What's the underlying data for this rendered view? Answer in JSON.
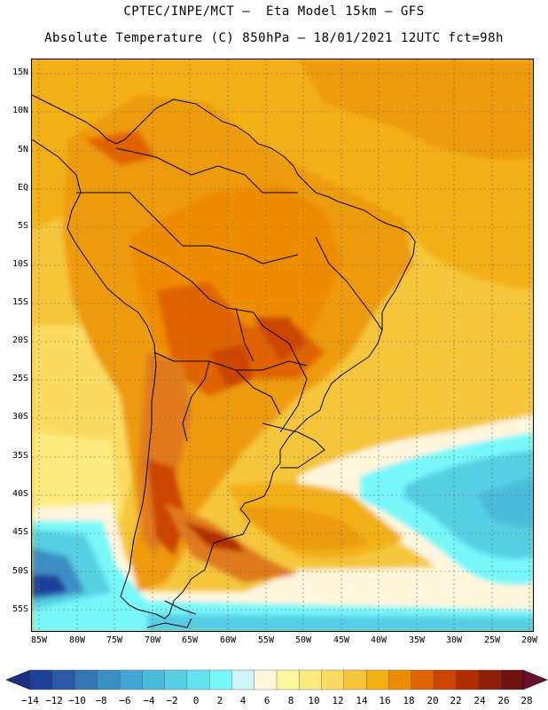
{
  "title": {
    "line1": "CPTEC/INPE/MCT –  Eta Model 15km – GFS",
    "line2": "Absolute Temperature (C) 850hPa – 18/01/2021 12UTC fct=98h"
  },
  "axes": {
    "lat_labels": [
      "15N",
      "10N",
      "5N",
      "EQ",
      "5S",
      "10S",
      "15S",
      "20S",
      "25S",
      "30S",
      "35S",
      "40S",
      "45S",
      "50S",
      "55S"
    ],
    "lon_labels": [
      "85W",
      "80W",
      "75W",
      "70W",
      "65W",
      "60W",
      "55W",
      "50W",
      "45W",
      "40W",
      "35W",
      "30W",
      "25W",
      "20W"
    ]
  },
  "colorbar": {
    "labels": [
      "−14",
      "−12",
      "−10",
      "−8",
      "−6",
      "−4",
      "−2",
      "0",
      "2",
      "4",
      "6",
      "8",
      "10",
      "12",
      "14",
      "16",
      "18",
      "20",
      "22",
      "24",
      "26",
      "28"
    ],
    "colors": [
      "#1f3f99",
      "#2a59a8",
      "#3375b5",
      "#3a8fc4",
      "#43a6d2",
      "#4cbbdb",
      "#56cfe4",
      "#63e3ee",
      "#78f7f9",
      "#cef5fb",
      "#fff6dc",
      "#fff79d",
      "#feeb7f",
      "#fadc60",
      "#f5c63b",
      "#f3b012",
      "#ee8c00",
      "#e06400",
      "#cc4400",
      "#b02d02",
      "#8f1e0a",
      "#6d1410"
    ],
    "under_color": "#1a2f80",
    "over_color": "#6a0f2e"
  },
  "colors": {
    "background_warm": "#f5b32a",
    "ocean_cool": "#56cfe4",
    "land_hot": "#e07a1f",
    "grid": "#6a6a6a",
    "border": "#000000"
  }
}
